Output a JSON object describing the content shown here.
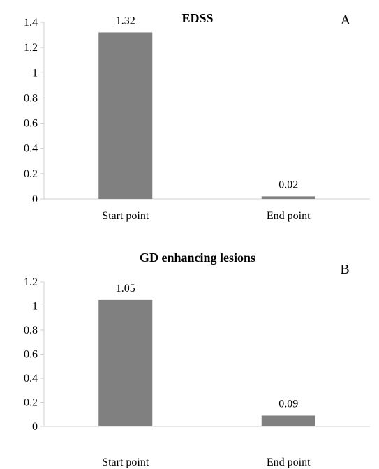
{
  "chart_data": [
    {
      "type": "bar",
      "title": "EDSS",
      "panel_label": "A",
      "categories": [
        "Start point",
        "End point"
      ],
      "values": [
        1.32,
        0.02
      ],
      "data_labels": [
        "1.32",
        "0.02"
      ],
      "ylim": [
        0,
        1.4
      ],
      "yticks": [
        "0",
        "0.2",
        "0.4",
        "0.6",
        "0.8",
        "1",
        "1.2",
        "1.4"
      ],
      "grid": false,
      "bar_color": "#808080"
    },
    {
      "type": "bar",
      "title": "GD enhancing lesions",
      "panel_label": "B",
      "categories": [
        "Start point",
        "End point"
      ],
      "values": [
        1.05,
        0.09
      ],
      "data_labels": [
        "1.05",
        "0.09"
      ],
      "ylim": [
        0,
        1.2
      ],
      "yticks": [
        "0",
        "0.2",
        "0.4",
        "0.6",
        "0.8",
        "1",
        "1.2"
      ],
      "grid": false,
      "bar_color": "#808080"
    }
  ]
}
